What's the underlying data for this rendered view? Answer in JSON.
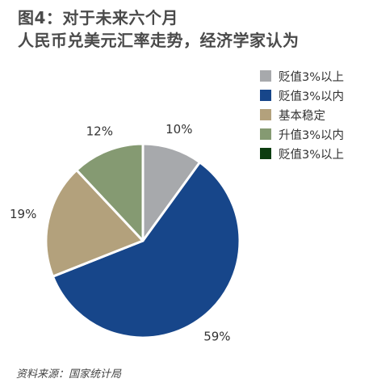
{
  "title": {
    "line1": "图4：对于未来六个月",
    "line2": "人民币兑美元汇率走势，经济学家认为"
  },
  "source": "资料来源：国家统计局",
  "chart_data": {
    "type": "pie",
    "slices": [
      {
        "label": "贬值3%以上",
        "value": 10,
        "display": "10%",
        "color": "#a7a9ac"
      },
      {
        "label": "贬值3%以内",
        "value": 59,
        "display": "59%",
        "color": "#17468a"
      },
      {
        "label": "基本稳定",
        "value": 19,
        "display": "19%",
        "color": "#b3a17c"
      },
      {
        "label": "升值3%以内",
        "value": 12,
        "display": "12%",
        "color": "#859a72"
      },
      {
        "label": "贬值3%以上",
        "value": 0,
        "display": "",
        "color": "#0c3d10"
      }
    ],
    "legend_position": "top-right"
  }
}
